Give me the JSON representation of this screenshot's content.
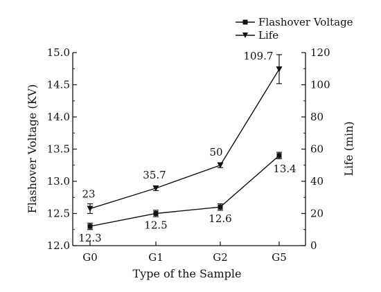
{
  "chart_data": {
    "type": "line",
    "categories": [
      "G0",
      "G1",
      "G2",
      "G5"
    ],
    "xlabel": "Type of the Sample",
    "ylabel_left": "Flashover Voltage (KV)",
    "ylabel_right": "Life (min)",
    "ylim_left": [
      12.0,
      15.0
    ],
    "ylim_right": [
      0,
      120
    ],
    "yticks_left": [
      "12.0",
      "12.5",
      "13.0",
      "13.5",
      "14.0",
      "14.5",
      "15.0"
    ],
    "yticks_right": [
      "0",
      "20",
      "40",
      "60",
      "80",
      "100",
      "120"
    ],
    "grid": false,
    "legend_position": "top-right",
    "series": [
      {
        "name": "Flashover Voltage",
        "axis": "left",
        "marker": "square",
        "values": [
          12.3,
          12.5,
          12.6,
          13.4
        ],
        "errors": [
          0.05,
          0.05,
          0.05,
          0.05
        ],
        "labels": [
          "12.3",
          "12.5",
          "12.6",
          "13.4"
        ]
      },
      {
        "name": "Life",
        "axis": "right",
        "marker": "triangle-down",
        "values": [
          23,
          35.7,
          50,
          109.7
        ],
        "errors": [
          3,
          1.5,
          1.5,
          9
        ],
        "labels": [
          "23",
          "35.7",
          "50",
          "109.7"
        ]
      }
    ]
  }
}
